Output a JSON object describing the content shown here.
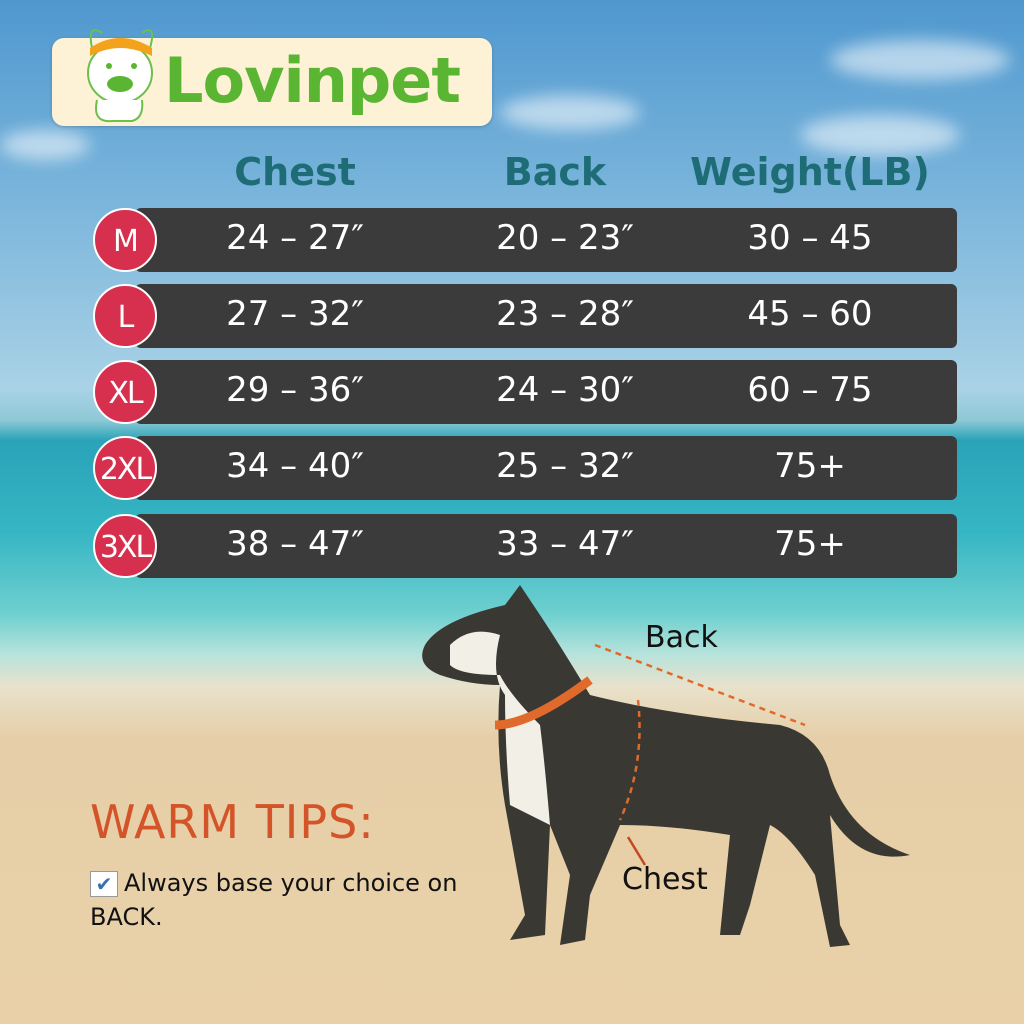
{
  "brand": {
    "name": "Lovinpet"
  },
  "table": {
    "headers": [
      "Chest",
      "Back",
      "Weight(LB)"
    ],
    "rows": [
      {
        "size": "M",
        "chest": "24 – 27″",
        "back": "20 – 23″",
        "weight": "30 – 45"
      },
      {
        "size": "L",
        "chest": "27 – 32″",
        "back": "23 – 28″",
        "weight": "45 – 60"
      },
      {
        "size": "XL",
        "chest": "29 – 36″",
        "back": "24 – 30″",
        "weight": "60 – 75"
      },
      {
        "size": "2XL",
        "chest": "34 – 40″",
        "back": "25 – 32″",
        "weight": "75+"
      },
      {
        "size": "3XL",
        "chest": "38 – 47″",
        "back": "33 – 47″",
        "weight": "75+"
      }
    ]
  },
  "diagram": {
    "back_label": "Back",
    "chest_label": "Chest"
  },
  "tips": {
    "title": "WARM TIPS:",
    "check": "✔",
    "text": "Always base your choice on BACK."
  },
  "colors": {
    "size_badge": "#d7304e",
    "row_bg": "#3b3b3b",
    "header": "#1e6c76",
    "tips_title": "#d4542a",
    "logo_green": "#5ab532",
    "logo_orange": "#f2a21b"
  }
}
